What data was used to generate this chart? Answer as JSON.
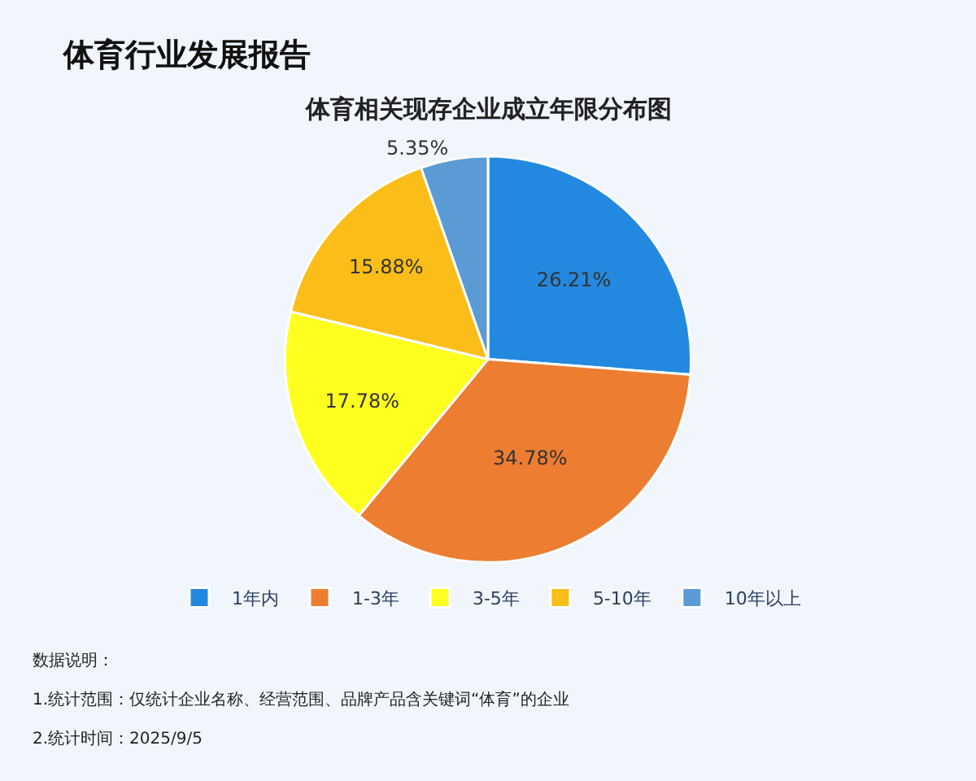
{
  "chart_data": {
    "type": "pie",
    "title": "体育行业发展报告",
    "subtitle": "体育相关现存企业成立年限分布图",
    "categories": [
      "1年内",
      "1-3年",
      "3-5年",
      "5-10年",
      "10年以上"
    ],
    "values": [
      26.21,
      34.78,
      17.78,
      15.88,
      5.35
    ],
    "value_labels": [
      "26.21%",
      "34.78%",
      "17.78%",
      "15.88%",
      "5.35%"
    ],
    "colors": [
      "#2389e0",
      "#ed7d31",
      "#ffff1f",
      "#fbbd18",
      "#5b9bd5"
    ],
    "legend": "bottom",
    "annotations": [
      "数据说明：",
      "1.统计范围：仅统计企业名称、经营范围、品牌产品含关键词“体育”的企业",
      "2.统计时间：2025/9/5"
    ]
  }
}
